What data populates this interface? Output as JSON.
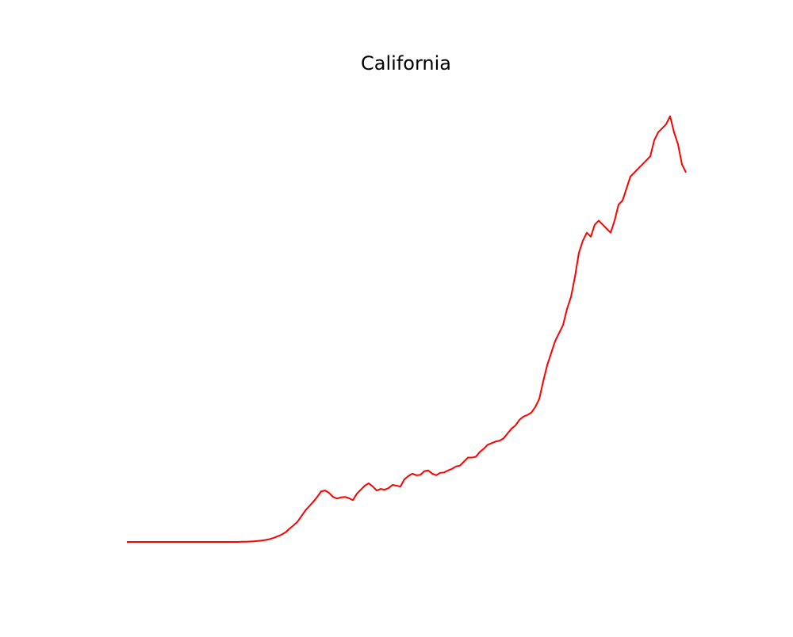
{
  "chart_data": {
    "type": "line",
    "title": "California",
    "xlabel": "",
    "ylabel": "",
    "grid": false,
    "axes_visible": false,
    "series": [
      {
        "color": "#ff0000",
        "x": [
          0,
          1,
          2,
          3,
          4,
          5,
          6,
          7,
          8,
          9,
          10,
          11,
          12,
          13,
          14,
          15,
          16,
          17,
          18,
          19,
          20,
          21,
          22,
          23,
          24,
          25,
          26,
          27,
          28,
          29,
          30,
          31,
          32,
          33,
          34,
          35,
          36,
          37,
          38,
          39,
          40,
          41,
          42,
          43,
          44,
          45,
          46,
          47,
          48,
          49,
          50,
          51,
          52,
          53,
          54,
          55,
          56,
          57,
          58,
          59,
          60,
          61,
          62,
          63,
          64,
          65,
          66,
          67,
          68,
          69,
          70,
          71,
          72,
          73,
          74,
          75,
          76,
          77,
          78,
          79,
          80,
          81,
          82,
          83,
          84,
          85,
          86,
          87,
          88,
          89,
          90,
          91,
          92,
          93,
          94,
          95,
          96,
          97,
          98,
          99,
          100,
          101,
          102,
          103,
          104,
          105,
          106,
          107,
          108,
          109,
          110,
          111,
          112,
          113,
          114,
          115,
          116,
          117,
          118,
          119,
          120,
          121,
          122,
          123,
          124,
          125,
          126,
          127,
          128,
          129,
          130,
          131,
          132,
          133,
          134,
          135,
          136,
          137,
          138,
          139,
          140,
          141
        ],
        "values": [
          0,
          0,
          0,
          0,
          0,
          0,
          0,
          0,
          0,
          0,
          0,
          0,
          0,
          0,
          0,
          0,
          0,
          0,
          0,
          0,
          0,
          0,
          0,
          0,
          0,
          0,
          0,
          0,
          0,
          2,
          3,
          5,
          8,
          12,
          17,
          25,
          35,
          50,
          70,
          90,
          120,
          165,
          205,
          250,
          320,
          390,
          445,
          500,
          560,
          630,
          640,
          610,
          560,
          540,
          555,
          560,
          545,
          520,
          600,
          650,
          700,
          730,
          690,
          640,
          660,
          650,
          670,
          710,
          700,
          690,
          780,
          820,
          850,
          830,
          835,
          880,
          890,
          850,
          830,
          860,
          865,
          890,
          910,
          940,
          950,
          1000,
          1050,
          1050,
          1060,
          1120,
          1160,
          1210,
          1230,
          1250,
          1260,
          1290,
          1350,
          1410,
          1450,
          1520,
          1560,
          1580,
          1610,
          1680,
          1780,
          2000,
          2200,
          2350,
          2500,
          2600,
          2700,
          2900,
          3050,
          3300,
          3600,
          3750,
          3850,
          3800,
          3950,
          4000,
          3950,
          3900,
          3850,
          4000,
          4200,
          4250,
          4400,
          4550,
          4600,
          4650,
          4700,
          4750,
          4800,
          5000,
          5100,
          5150,
          5200,
          5300,
          5100,
          4950,
          4700,
          4600
        ],
        "ylim": [
          0,
          5800
        ]
      }
    ]
  }
}
